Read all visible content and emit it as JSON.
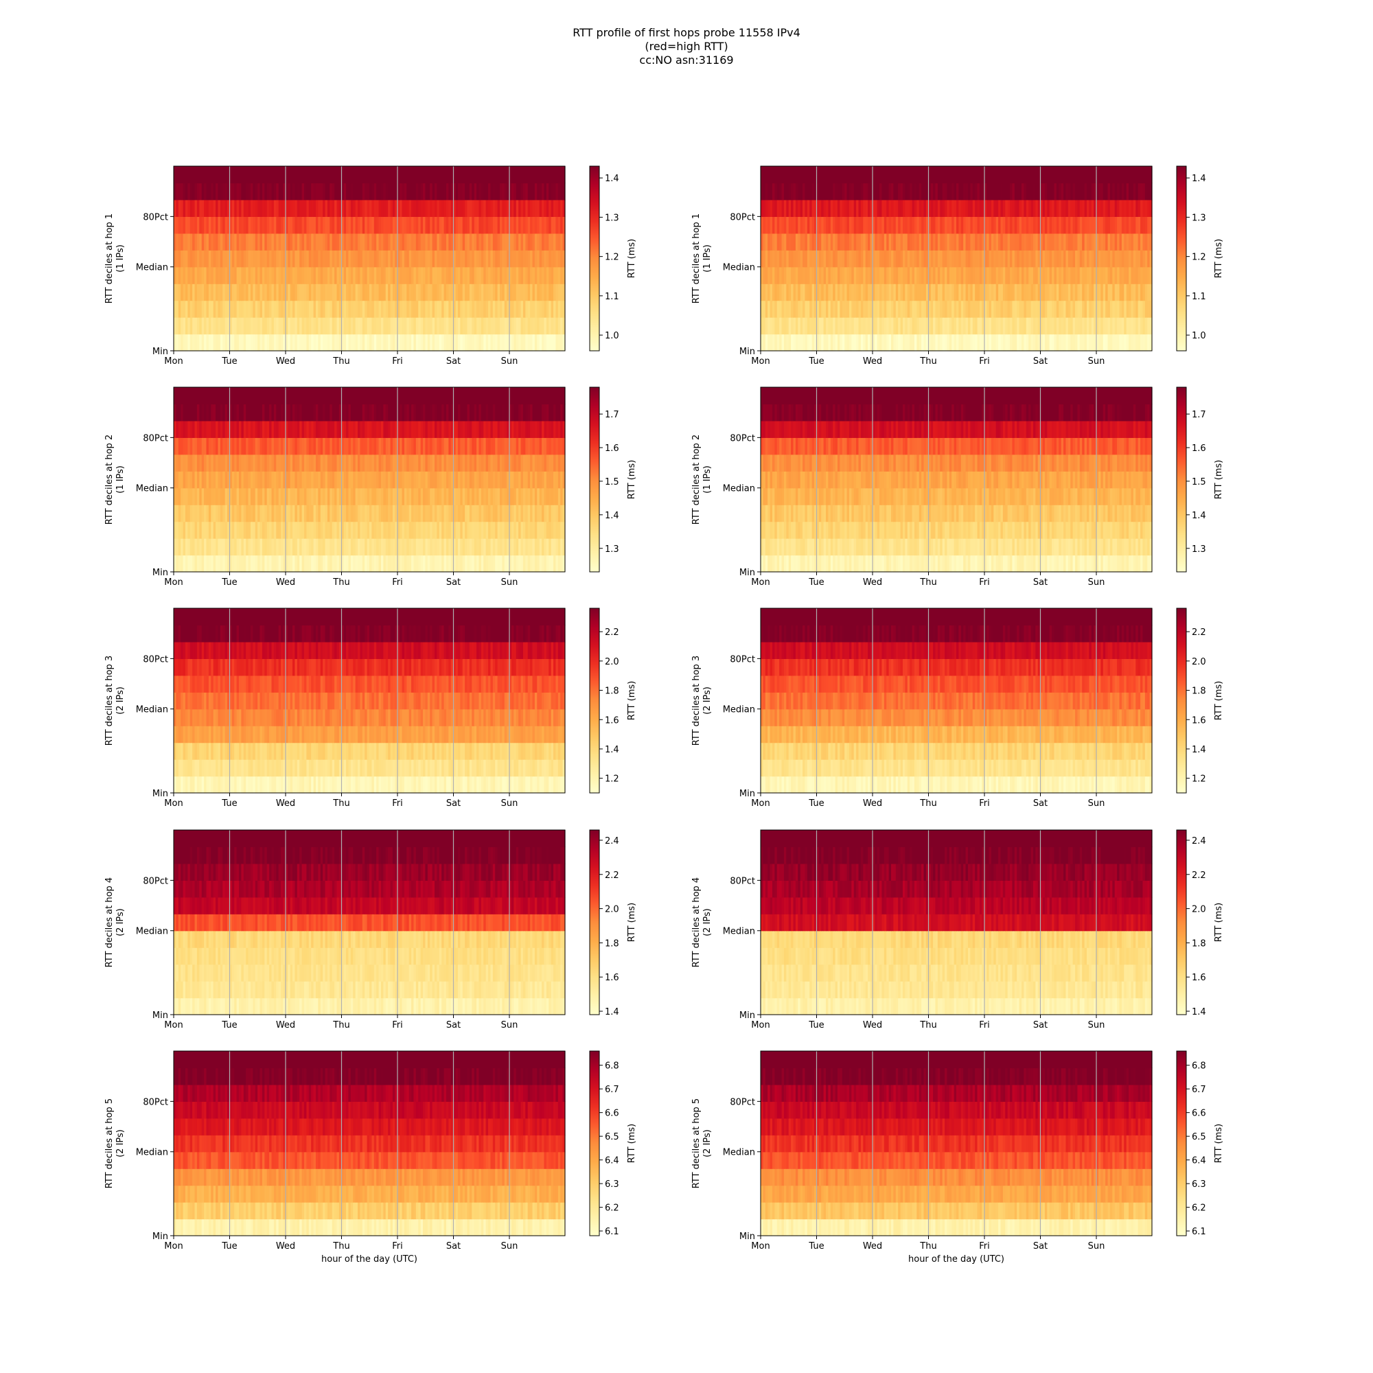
{
  "title": {
    "line1": "RTT profile of first hops probe 11558 IPv4",
    "line2": "(red=high RTT)",
    "line3": "cc:NO asn:31169"
  },
  "colors": {
    "low": "#ffffcc",
    "mid": "#fd8d3c",
    "high": "#800026",
    "grid": "#b0b0b0"
  },
  "chart_data": [
    {
      "type": "heatmap",
      "hop": 1,
      "column": 1,
      "ylabel": "RTT deciles at hop 1",
      "ylabel2": "(1 IPs)",
      "yticks": [
        "Min",
        "Median",
        "80Pct"
      ],
      "xticks": [
        "Mon",
        "Tue",
        "Wed",
        "Thu",
        "Fri",
        "Sat",
        "Sun"
      ],
      "xlabel": "",
      "colorbar_label": "RTT (ms)",
      "cbar_range": [
        0.96,
        1.43
      ],
      "cbar_ticks": [
        1.0,
        1.1,
        1.2,
        1.3,
        1.4
      ],
      "decile_values": [
        0.98,
        1.05,
        1.09,
        1.12,
        1.15,
        1.18,
        1.21,
        1.26,
        1.31,
        1.43
      ]
    },
    {
      "type": "heatmap",
      "hop": 1,
      "column": 2,
      "ylabel": "RTT deciles at hop 1",
      "ylabel2": "(1 IPs)",
      "yticks": [
        "Min",
        "Median",
        "80Pct"
      ],
      "xticks": [
        "Mon",
        "Tue",
        "Wed",
        "Thu",
        "Fri",
        "Sat",
        "Sun"
      ],
      "xlabel": "",
      "colorbar_label": "RTT (ms)",
      "cbar_range": [
        0.96,
        1.43
      ],
      "cbar_ticks": [
        1.0,
        1.1,
        1.2,
        1.3,
        1.4
      ],
      "decile_values": [
        0.98,
        1.05,
        1.09,
        1.12,
        1.15,
        1.18,
        1.21,
        1.26,
        1.32,
        1.43
      ]
    },
    {
      "type": "heatmap",
      "hop": 2,
      "column": 1,
      "ylabel": "RTT deciles at hop 2",
      "ylabel2": "(1 IPs)",
      "yticks": [
        "Min",
        "Median",
        "80Pct"
      ],
      "xticks": [
        "Mon",
        "Tue",
        "Wed",
        "Thu",
        "Fri",
        "Sat",
        "Sun"
      ],
      "xlabel": "",
      "colorbar_label": "RTT (ms)",
      "cbar_range": [
        1.23,
        1.78
      ],
      "cbar_ticks": [
        1.3,
        1.4,
        1.5,
        1.6,
        1.7
      ],
      "decile_values": [
        1.27,
        1.33,
        1.37,
        1.4,
        1.43,
        1.46,
        1.5,
        1.56,
        1.66,
        1.78
      ]
    },
    {
      "type": "heatmap",
      "hop": 2,
      "column": 2,
      "ylabel": "RTT deciles at hop 2",
      "ylabel2": "(1 IPs)",
      "yticks": [
        "Min",
        "Median",
        "80Pct"
      ],
      "xticks": [
        "Mon",
        "Tue",
        "Wed",
        "Thu",
        "Fri",
        "Sat",
        "Sun"
      ],
      "xlabel": "",
      "colorbar_label": "RTT (ms)",
      "cbar_range": [
        1.23,
        1.78
      ],
      "cbar_ticks": [
        1.3,
        1.4,
        1.5,
        1.6,
        1.7
      ],
      "decile_values": [
        1.27,
        1.33,
        1.37,
        1.4,
        1.43,
        1.46,
        1.5,
        1.56,
        1.67,
        1.78
      ]
    },
    {
      "type": "heatmap",
      "hop": 3,
      "column": 1,
      "ylabel": "RTT deciles at hop 3",
      "ylabel2": "(2 IPs)",
      "yticks": [
        "Min",
        "Median",
        "80Pct"
      ],
      "xticks": [
        "Mon",
        "Tue",
        "Wed",
        "Thu",
        "Fri",
        "Sat",
        "Sun"
      ],
      "xlabel": "",
      "colorbar_label": "RTT (ms)",
      "cbar_range": [
        1.1,
        2.36
      ],
      "cbar_ticks": [
        1.2,
        1.4,
        1.6,
        1.8,
        2.0,
        2.2
      ],
      "decile_values": [
        1.18,
        1.33,
        1.42,
        1.65,
        1.74,
        1.8,
        1.88,
        1.98,
        2.12,
        2.36
      ]
    },
    {
      "type": "heatmap",
      "hop": 3,
      "column": 2,
      "ylabel": "RTT deciles at hop 3",
      "ylabel2": "(2 IPs)",
      "yticks": [
        "Min",
        "Median",
        "80Pct"
      ],
      "xticks": [
        "Mon",
        "Tue",
        "Wed",
        "Thu",
        "Fri",
        "Sat",
        "Sun"
      ],
      "xlabel": "",
      "colorbar_label": "RTT (ms)",
      "cbar_range": [
        1.1,
        2.36
      ],
      "cbar_ticks": [
        1.2,
        1.4,
        1.6,
        1.8,
        2.0,
        2.2
      ],
      "decile_values": [
        1.18,
        1.33,
        1.42,
        1.56,
        1.72,
        1.8,
        1.88,
        1.98,
        2.12,
        2.36
      ]
    },
    {
      "type": "heatmap",
      "hop": 4,
      "column": 1,
      "ylabel": "RTT deciles at hop 4",
      "ylabel2": "(2 IPs)",
      "yticks": [
        "Min",
        "Median",
        "80Pct"
      ],
      "xticks": [
        "Mon",
        "Tue",
        "Wed",
        "Thu",
        "Fri",
        "Sat",
        "Sun"
      ],
      "xlabel": "",
      "colorbar_label": "RTT (ms)",
      "cbar_range": [
        1.38,
        2.46
      ],
      "cbar_ticks": [
        1.4,
        1.6,
        1.8,
        2.0,
        2.2,
        2.4
      ],
      "decile_values": [
        1.48,
        1.55,
        1.58,
        1.61,
        1.64,
        2.05,
        2.3,
        2.36,
        2.4,
        2.46
      ]
    },
    {
      "type": "heatmap",
      "hop": 4,
      "column": 2,
      "ylabel": "RTT deciles at hop 4",
      "ylabel2": "(2 IPs)",
      "yticks": [
        "Min",
        "Median",
        "80Pct"
      ],
      "xticks": [
        "Mon",
        "Tue",
        "Wed",
        "Thu",
        "Fri",
        "Sat",
        "Sun"
      ],
      "xlabel": "",
      "colorbar_label": "RTT (ms)",
      "cbar_range": [
        1.38,
        2.46
      ],
      "cbar_ticks": [
        1.4,
        1.6,
        1.8,
        2.0,
        2.2,
        2.4
      ],
      "decile_values": [
        1.48,
        1.55,
        1.58,
        1.61,
        1.64,
        2.25,
        2.32,
        2.37,
        2.41,
        2.46
      ]
    },
    {
      "type": "heatmap",
      "hop": 5,
      "column": 1,
      "ylabel": "RTT deciles at hop 5",
      "ylabel2": "(2 IPs)",
      "yticks": [
        "Min",
        "Median",
        "80Pct"
      ],
      "xticks": [
        "Mon",
        "Tue",
        "Wed",
        "Thu",
        "Fri",
        "Sat",
        "Sun"
      ],
      "xlabel": "hour of the day (UTC)",
      "colorbar_label": "RTT (ms)",
      "cbar_range": [
        6.08,
        6.86
      ],
      "cbar_ticks": [
        6.1,
        6.2,
        6.3,
        6.4,
        6.5,
        6.6,
        6.7,
        6.8
      ],
      "decile_values": [
        6.15,
        6.3,
        6.38,
        6.44,
        6.56,
        6.62,
        6.68,
        6.73,
        6.78,
        6.86
      ]
    },
    {
      "type": "heatmap",
      "hop": 5,
      "column": 2,
      "ylabel": "RTT deciles at hop 5",
      "ylabel2": "(2 IPs)",
      "yticks": [
        "Min",
        "Median",
        "80Pct"
      ],
      "xticks": [
        "Mon",
        "Tue",
        "Wed",
        "Thu",
        "Fri",
        "Sat",
        "Sun"
      ],
      "xlabel": "hour of the day (UTC)",
      "colorbar_label": "RTT (ms)",
      "cbar_range": [
        6.08,
        6.86
      ],
      "cbar_ticks": [
        6.1,
        6.2,
        6.3,
        6.4,
        6.5,
        6.6,
        6.7,
        6.8
      ],
      "decile_values": [
        6.15,
        6.32,
        6.4,
        6.46,
        6.56,
        6.62,
        6.68,
        6.73,
        6.79,
        6.86
      ]
    }
  ]
}
